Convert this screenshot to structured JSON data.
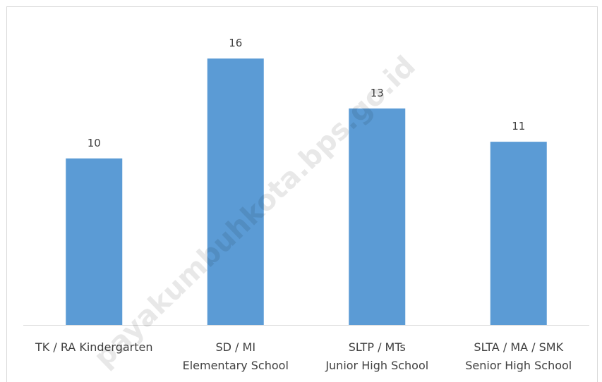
{
  "chart_data": {
    "type": "bar",
    "categories": [
      [
        "TK / RA Kindergarten"
      ],
      [
        "SD / MI",
        "Elementary School"
      ],
      [
        "SLTP / MTs",
        "Junior High School"
      ],
      [
        "SLTA / MA / SMK",
        "Senior High School"
      ]
    ],
    "values": [
      10,
      16,
      13,
      11
    ],
    "data_labels": [
      "10",
      "16",
      "13",
      "11"
    ],
    "title": "",
    "xlabel": "",
    "ylabel": "",
    "ylim": [
      0,
      16
    ],
    "grid": false,
    "legend": "none",
    "colors": {
      "bar": "#5B9BD5",
      "axis": "#d9d9d9",
      "text": "#404040"
    }
  },
  "watermark": "payakumbuhkota.bps.go.id"
}
